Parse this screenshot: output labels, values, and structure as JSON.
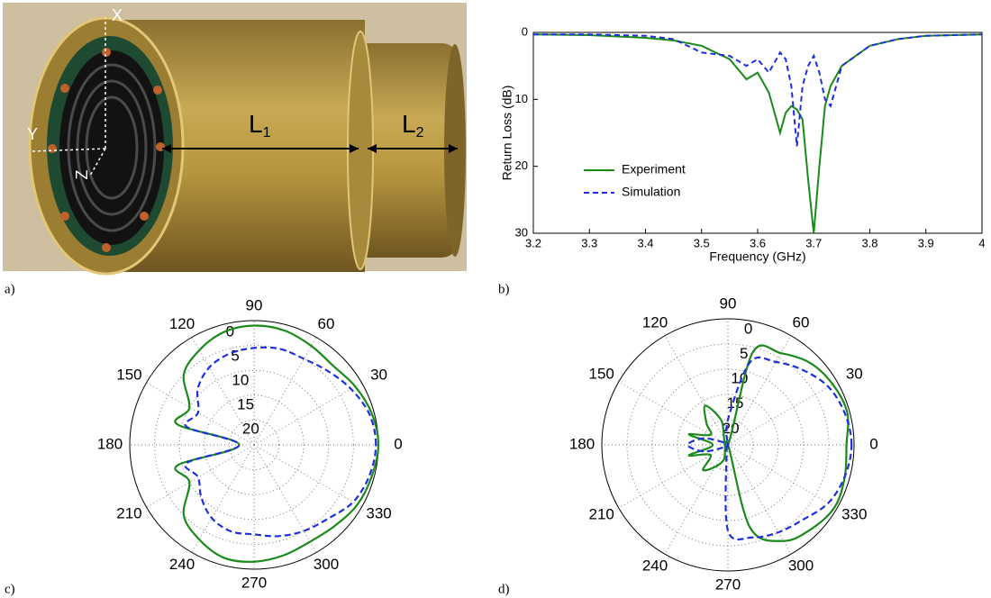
{
  "photo": {
    "x_axis": "X",
    "y_axis": "Y",
    "z_axis": "Z",
    "l1": {
      "main": "L",
      "sub": "1"
    },
    "l2": {
      "main": "L",
      "sub": "2"
    }
  },
  "panel_labels": [
    "a)",
    "b)",
    "c)",
    "d)"
  ],
  "chart_data": [
    {
      "type": "line",
      "xlabel": "Frequency (GHz)",
      "ylabel": "Return Loss (dB)",
      "x": [
        3.2,
        3.3,
        3.4,
        3.45,
        3.5,
        3.55,
        3.58,
        3.6,
        3.62,
        3.64,
        3.65,
        3.66,
        3.67,
        3.68,
        3.69,
        3.7,
        3.71,
        3.72,
        3.73,
        3.75,
        3.8,
        3.85,
        3.9,
        4
      ],
      "series": [
        {
          "name": "Experiment",
          "color": "#1a8a1a",
          "dash": false,
          "values": [
            0.3,
            0.4,
            0.8,
            1.2,
            2,
            4,
            7,
            6,
            9,
            15,
            12,
            11,
            11.5,
            13,
            22,
            30,
            20,
            11,
            8,
            5,
            2,
            1,
            0.5,
            0.3
          ]
        },
        {
          "name": "Simulation",
          "color": "#1f2fe0",
          "dash": true,
          "values": [
            0.3,
            0.3,
            0.5,
            1,
            3,
            3.5,
            5,
            4,
            6,
            3,
            4,
            8,
            17,
            8,
            5,
            3.5,
            6,
            10,
            11,
            5,
            2,
            1,
            0.5,
            0.3
          ]
        }
      ],
      "xlim": [
        3.2,
        4
      ],
      "xticks": [
        3.2,
        3.3,
        3.4,
        3.5,
        3.6,
        3.7,
        3.8,
        3.9,
        4
      ],
      "ylim": [
        0,
        30
      ],
      "yticks": [
        0,
        10,
        20,
        30
      ],
      "y_inverted": true,
      "legend": "lower-left"
    },
    {
      "type": "polar",
      "theta": [
        0,
        15,
        30,
        45,
        60,
        75,
        90,
        105,
        120,
        135,
        150,
        165,
        180,
        195,
        210,
        225,
        240,
        255,
        270,
        285,
        300,
        315,
        330,
        345
      ],
      "series": [
        {
          "name": "Experiment",
          "color": "#1a8a1a",
          "dash": false,
          "values": [
            0,
            0.5,
            1.5,
            2.5,
            2,
            1.2,
            1,
            1.5,
            3,
            5,
            10,
            9,
            22,
            9,
            10,
            5,
            3,
            1.5,
            1.5,
            2,
            2.5,
            2,
            1,
            0.5
          ]
        },
        {
          "name": "Simulation",
          "color": "#1f2fe0",
          "dash": true,
          "values": [
            0.5,
            1,
            2.5,
            4,
            5,
            5,
            5.5,
            6,
            7,
            9,
            12,
            11,
            22,
            11,
            12,
            10,
            8,
            7,
            7,
            6,
            5,
            4,
            2,
            1
          ]
        }
      ],
      "rlim": [
        25,
        0
      ],
      "rticks": [
        0,
        5,
        10,
        15,
        20
      ],
      "angle_ticks": [
        0,
        30,
        60,
        90,
        120,
        150,
        180,
        210,
        240,
        270,
        300,
        330
      ]
    },
    {
      "type": "polar",
      "theta": [
        0,
        15,
        30,
        45,
        60,
        75,
        90,
        105,
        120,
        135,
        150,
        165,
        180,
        195,
        210,
        225,
        240,
        255,
        270,
        285,
        300,
        315,
        330,
        345
      ],
      "series": [
        {
          "name": "Experiment",
          "color": "#1a8a1a",
          "dash": false,
          "values": [
            1.5,
            0.5,
            1,
            2,
            4,
            6,
            25,
            20,
            16,
            19,
            21,
            17,
            22,
            17,
            21,
            18,
            20,
            22,
            25,
            8,
            3,
            1.5,
            0.5,
            1
          ]
        },
        {
          "name": "Simulation",
          "color": "#1f2fe0",
          "dash": true,
          "values": [
            0.5,
            1,
            2,
            4,
            6,
            8,
            20,
            25,
            25,
            25,
            24,
            20,
            17,
            20,
            24,
            25,
            25,
            24,
            8,
            6,
            5,
            4,
            2,
            1
          ]
        }
      ],
      "rlim": [
        25,
        0
      ],
      "rticks": [
        0,
        5,
        10,
        15,
        20
      ],
      "angle_ticks": [
        0,
        30,
        60,
        90,
        120,
        150,
        180,
        210,
        240,
        270,
        300,
        330
      ]
    }
  ]
}
